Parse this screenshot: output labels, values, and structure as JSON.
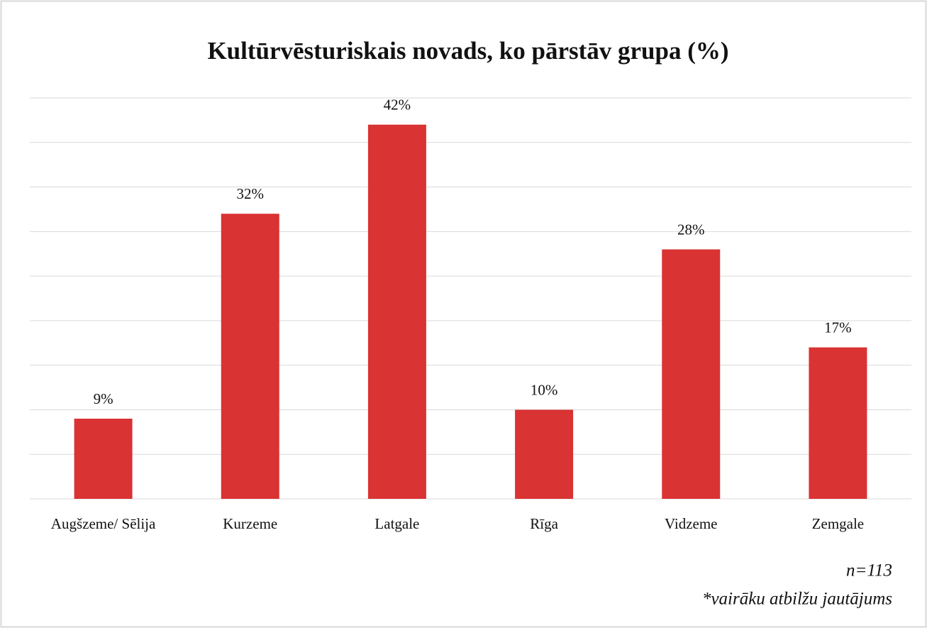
{
  "chart_data": {
    "type": "bar",
    "title": "Kultūrvēsturiskais novads, ko pārstāv grupa (%)",
    "categories": [
      "Augšzeme/ Sēlija",
      "Kurzeme",
      "Latgale",
      "Rīga",
      "Vidzeme",
      "Zemgale"
    ],
    "values": [
      9,
      32,
      42,
      10,
      28,
      17
    ],
    "value_labels": [
      "9%",
      "32%",
      "42%",
      "10%",
      "28%",
      "17%"
    ],
    "color": "#d93333",
    "ylim": [
      0,
      45
    ],
    "yticks": [
      0,
      5,
      10,
      15,
      20,
      25,
      30,
      35,
      40,
      45
    ],
    "grid": true,
    "notes": [
      "n=113",
      "*vairāku atbilžu jautājums"
    ]
  }
}
